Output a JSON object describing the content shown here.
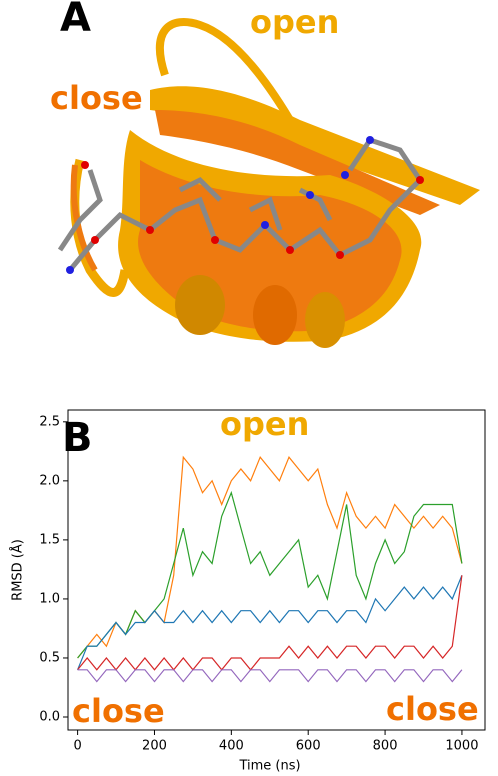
{
  "panel_a": {
    "label": "A",
    "open_label": "open",
    "close_label": "close"
  },
  "chart_data": {
    "type": "line",
    "panel_label": "B",
    "annotations": [
      "open",
      "close",
      "close"
    ],
    "xlabel": "Time (ns)",
    "ylabel": "RMSD (Å)",
    "x": [
      0,
      25,
      50,
      75,
      100,
      125,
      150,
      175,
      200,
      225,
      250,
      275,
      300,
      325,
      350,
      375,
      400,
      425,
      450,
      475,
      500,
      525,
      550,
      575,
      600,
      625,
      650,
      675,
      700,
      725,
      750,
      775,
      800,
      825,
      850,
      875,
      900,
      925,
      950,
      975,
      1000
    ],
    "series": [
      {
        "color": "#ff7f0e",
        "values": [
          0.5,
          0.6,
          0.7,
          0.6,
          0.8,
          0.7,
          0.9,
          0.8,
          0.9,
          0.8,
          1.2,
          2.2,
          2.1,
          1.9,
          2.0,
          1.8,
          2.0,
          2.1,
          2.0,
          2.2,
          2.1,
          2.0,
          2.2,
          2.1,
          2.0,
          2.1,
          1.8,
          1.6,
          1.9,
          1.7,
          1.6,
          1.7,
          1.6,
          1.8,
          1.7,
          1.6,
          1.7,
          1.6,
          1.7,
          1.6,
          1.3
        ]
      },
      {
        "color": "#2ca02c",
        "values": [
          0.5,
          0.6,
          0.6,
          0.7,
          0.8,
          0.7,
          0.9,
          0.8,
          0.9,
          1.0,
          1.3,
          1.6,
          1.2,
          1.4,
          1.3,
          1.7,
          1.9,
          1.6,
          1.3,
          1.4,
          1.2,
          1.3,
          1.4,
          1.5,
          1.1,
          1.2,
          1.0,
          1.4,
          1.8,
          1.2,
          1.0,
          1.3,
          1.5,
          1.3,
          1.4,
          1.7,
          1.8,
          1.8,
          1.8,
          1.8,
          1.3
        ]
      },
      {
        "color": "#1f77b4",
        "values": [
          0.4,
          0.6,
          0.6,
          0.7,
          0.8,
          0.7,
          0.8,
          0.8,
          0.9,
          0.8,
          0.8,
          0.9,
          0.8,
          0.9,
          0.8,
          0.9,
          0.8,
          0.9,
          0.9,
          0.8,
          0.9,
          0.8,
          0.9,
          0.9,
          0.8,
          0.9,
          0.9,
          0.8,
          0.9,
          0.9,
          0.8,
          1.0,
          0.9,
          1.0,
          1.1,
          1.0,
          1.1,
          1.0,
          1.1,
          1.0,
          1.2
        ]
      },
      {
        "color": "#d62728",
        "values": [
          0.4,
          0.5,
          0.4,
          0.5,
          0.4,
          0.5,
          0.4,
          0.5,
          0.4,
          0.5,
          0.4,
          0.5,
          0.4,
          0.5,
          0.5,
          0.4,
          0.5,
          0.5,
          0.4,
          0.5,
          0.5,
          0.5,
          0.6,
          0.5,
          0.6,
          0.5,
          0.6,
          0.5,
          0.6,
          0.6,
          0.5,
          0.6,
          0.6,
          0.5,
          0.6,
          0.6,
          0.5,
          0.6,
          0.5,
          0.6,
          1.2
        ]
      },
      {
        "color": "#9467bd",
        "values": [
          0.4,
          0.4,
          0.3,
          0.4,
          0.4,
          0.3,
          0.4,
          0.4,
          0.3,
          0.4,
          0.4,
          0.3,
          0.4,
          0.4,
          0.3,
          0.4,
          0.4,
          0.3,
          0.4,
          0.4,
          0.3,
          0.4,
          0.4,
          0.4,
          0.3,
          0.4,
          0.4,
          0.3,
          0.4,
          0.4,
          0.3,
          0.4,
          0.4,
          0.3,
          0.4,
          0.4,
          0.3,
          0.4,
          0.4,
          0.3,
          0.4
        ]
      }
    ],
    "xlim": [
      -25,
      1060
    ],
    "ylim": [
      -0.11,
      2.6
    ],
    "xticks": [
      0,
      200,
      400,
      600,
      800,
      1000
    ],
    "yticks": [
      {
        "value": 0,
        "label": "0.0"
      },
      0.5,
      {
        "value": 1,
        "label": "1.0"
      },
      1.5,
      {
        "value": 2,
        "label": "2.0"
      },
      2.5
    ]
  }
}
